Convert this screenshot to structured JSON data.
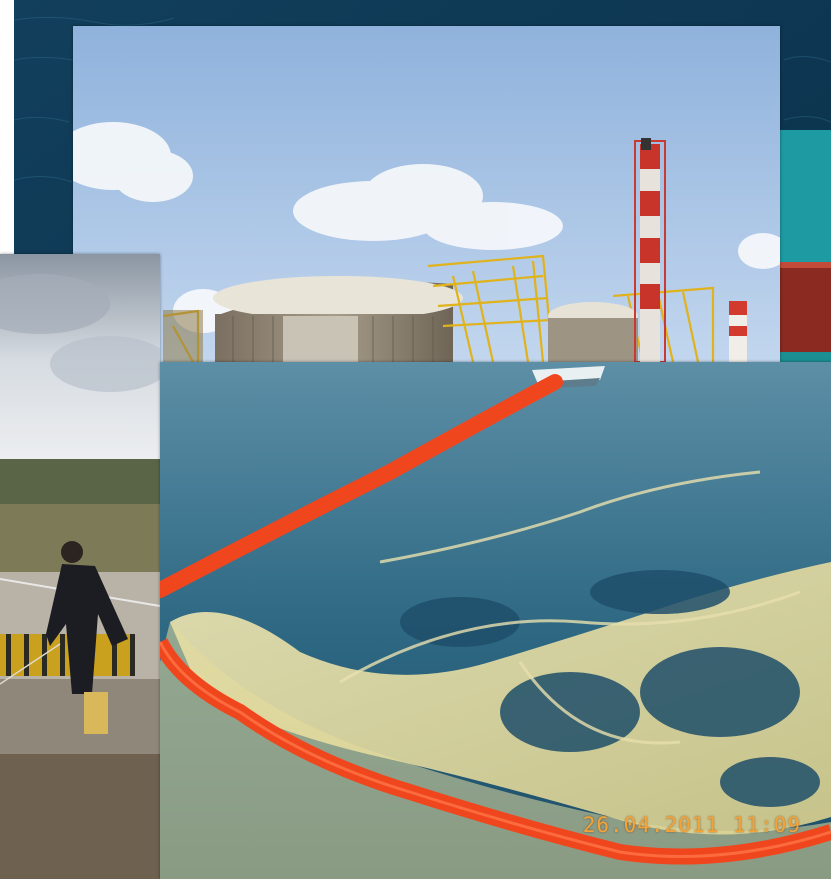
{
  "collage": {
    "photo_timestamp": "26.04.2011  11:09",
    "panels": [
      {
        "name": "open-sea-background",
        "subject": "dark blue sea surface"
      },
      {
        "name": "lng-terminal-photo",
        "subject": "LNG storage tanks with red and white flare stack"
      },
      {
        "name": "shoreline-worker-photo",
        "subject": "worker in rubber boots handling a rope at the shore"
      },
      {
        "name": "oil-boom-photo",
        "subject": "orange containment boom around an oil slick towed by a boat"
      }
    ]
  },
  "colors": {
    "sea_dark": "#0e3a55",
    "sky": "#aec6e4",
    "boom_orange": "#f0461e",
    "oil_yellow": "#e9e2a8",
    "timestamp": "#f2a33a"
  }
}
